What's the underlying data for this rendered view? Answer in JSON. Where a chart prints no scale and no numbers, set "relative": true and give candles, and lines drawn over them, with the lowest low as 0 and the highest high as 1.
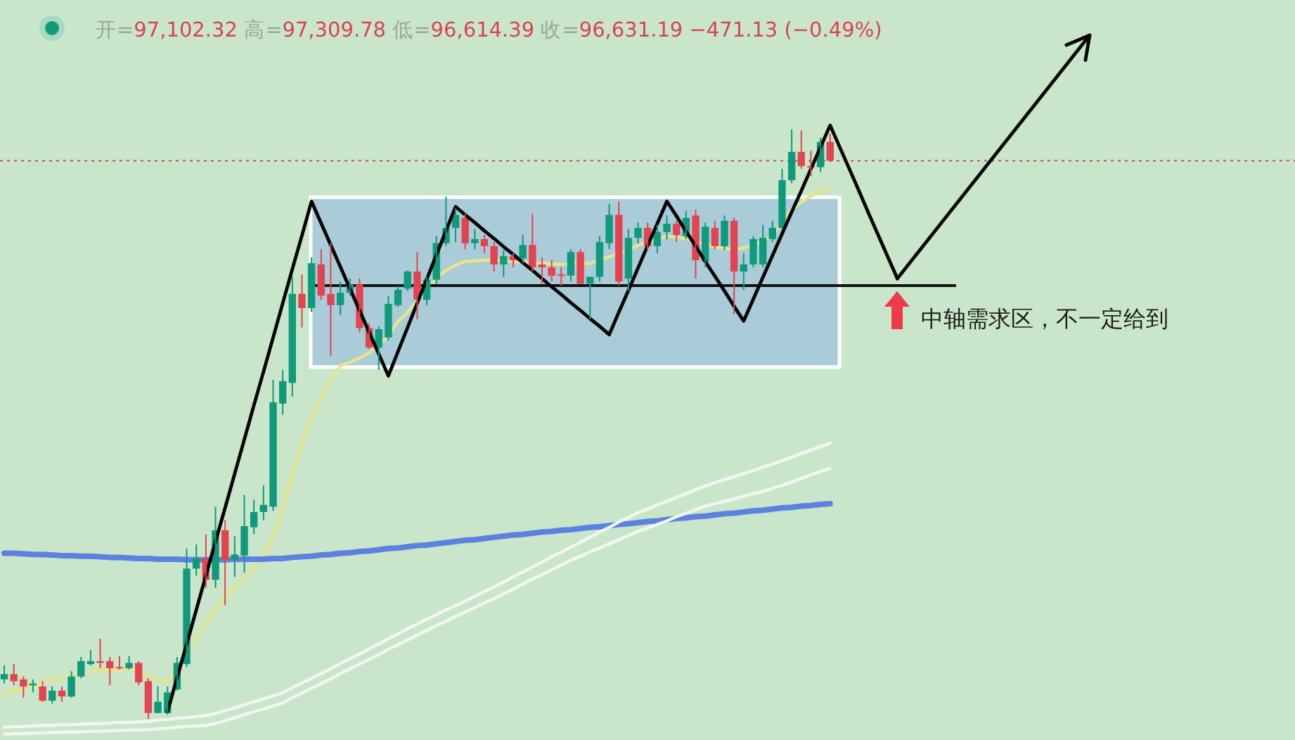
{
  "chart_data": {
    "type": "candlestick",
    "relative": true,
    "categories": [
      null,
      null,
      null,
      null,
      null,
      null,
      null,
      null,
      null,
      null,
      null,
      null,
      null,
      null,
      null,
      null,
      null,
      null,
      null,
      null,
      null,
      null,
      null,
      null,
      null,
      null,
      null,
      null,
      null,
      null,
      null,
      null,
      null,
      null,
      null,
      null,
      null,
      null,
      null,
      null,
      null,
      null,
      null,
      null,
      null,
      null,
      null,
      null,
      null,
      null,
      null,
      null,
      null,
      null,
      null,
      null,
      null,
      null,
      null,
      null,
      null,
      null,
      null,
      null,
      null,
      null,
      null,
      null,
      null,
      null,
      null,
      null,
      null,
      null,
      null,
      null,
      null,
      null,
      null,
      null,
      null,
      null,
      null,
      null,
      null,
      null,
      null,
      null,
      null,
      null,
      null,
      null,
      null,
      null
    ],
    "ohlc": [
      [
        0.067,
        0.091,
        0.06,
        0.076
      ],
      [
        0.076,
        0.093,
        0.057,
        0.064
      ],
      [
        0.067,
        0.072,
        0.036,
        0.055
      ],
      [
        0.057,
        0.067,
        0.045,
        0.06
      ],
      [
        0.055,
        0.064,
        0.029,
        0.031
      ],
      [
        0.031,
        0.055,
        0.026,
        0.048
      ],
      [
        0.048,
        0.055,
        0.029,
        0.038
      ],
      [
        0.038,
        0.081,
        0.036,
        0.072
      ],
      [
        0.072,
        0.105,
        0.069,
        0.098
      ],
      [
        0.093,
        0.117,
        0.091,
        0.098
      ],
      [
        0.098,
        0.136,
        0.086,
        0.095
      ],
      [
        0.098,
        0.105,
        0.057,
        0.086
      ],
      [
        0.088,
        0.107,
        0.084,
        0.086
      ],
      [
        0.086,
        0.107,
        0.084,
        0.095
      ],
      [
        0.095,
        0.098,
        0.057,
        0.062
      ],
      [
        0.064,
        0.069,
        0,
        0.01
      ],
      [
        0.01,
        0.055,
        0.01,
        0.029
      ],
      [
        0.01,
        0.055,
        0.007,
        0.045
      ],
      [
        0.05,
        0.105,
        0.048,
        0.095
      ],
      [
        0.093,
        0.289,
        0.088,
        0.255
      ],
      [
        0.255,
        0.296,
        0.243,
        0.272
      ],
      [
        0.272,
        0.313,
        0.222,
        0.236
      ],
      [
        0.236,
        0.36,
        0.222,
        0.32
      ],
      [
        0.32,
        0.337,
        0.193,
        0.27
      ],
      [
        0.27,
        0.31,
        0.241,
        0.279
      ],
      [
        0.277,
        0.38,
        0.248,
        0.327
      ],
      [
        0.325,
        0.372,
        0.313,
        0.351
      ],
      [
        0.351,
        0.396,
        0.337,
        0.363
      ],
      [
        0.36,
        0.575,
        0.353,
        0.537
      ],
      [
        0.535,
        0.592,
        0.516,
        0.573
      ],
      [
        0.57,
        0.75,
        0.547,
        0.721
      ],
      [
        0.721,
        0.754,
        0.664,
        0.697
      ],
      [
        0.697,
        0.783,
        0.69,
        0.773
      ],
      [
        0.771,
        0.797,
        0.711,
        0.718
      ],
      [
        0.721,
        0.807,
        0.616,
        0.702
      ],
      [
        0.702,
        0.742,
        0.685,
        0.723
      ],
      [
        0.723,
        0.747,
        0.718,
        0.737
      ],
      [
        0.737,
        0.747,
        0.656,
        0.663
      ],
      [
        0.663,
        0.671,
        0.628,
        0.63
      ],
      [
        0.63,
        0.666,
        0.592,
        0.661
      ],
      [
        0.647,
        0.718,
        0.642,
        0.704
      ],
      [
        0.702,
        0.735,
        0.699,
        0.728
      ],
      [
        0.73,
        0.761,
        0.726,
        0.759
      ],
      [
        0.759,
        0.792,
        0.678,
        0.711
      ],
      [
        0.711,
        0.75,
        0.702,
        0.745
      ],
      [
        0.745,
        0.819,
        0.738,
        0.807
      ],
      [
        0.807,
        0.886,
        0.802,
        0.833
      ],
      [
        0.833,
        0.866,
        0.809,
        0.855
      ],
      [
        0.85,
        0.857,
        0.797,
        0.807
      ],
      [
        0.807,
        0.831,
        0.797,
        0.814
      ],
      [
        0.814,
        0.821,
        0.79,
        0.802
      ],
      [
        0.802,
        0.809,
        0.759,
        0.771
      ],
      [
        0.771,
        0.795,
        0.75,
        0.785
      ],
      [
        0.785,
        0.79,
        0.766,
        0.778
      ],
      [
        0.781,
        0.821,
        0.773,
        0.804
      ],
      [
        0.804,
        0.857,
        0.759,
        0.766
      ],
      [
        0.771,
        0.783,
        0.738,
        0.766
      ],
      [
        0.766,
        0.778,
        0.742,
        0.752
      ],
      [
        0.754,
        0.766,
        0.735,
        0.752
      ],
      [
        0.752,
        0.797,
        0.742,
        0.792
      ],
      [
        0.792,
        0.797,
        0.738,
        0.738
      ],
      [
        0.738,
        0.75,
        0.678,
        0.75
      ],
      [
        0.75,
        0.819,
        0.742,
        0.809
      ],
      [
        0.807,
        0.874,
        0.797,
        0.855
      ],
      [
        0.855,
        0.878,
        0.735,
        0.742
      ],
      [
        0.747,
        0.831,
        0.726,
        0.816
      ],
      [
        0.816,
        0.842,
        0.807,
        0.833
      ],
      [
        0.833,
        0.842,
        0.795,
        0.802
      ],
      [
        0.802,
        0.838,
        0.79,
        0.826
      ],
      [
        0.826,
        0.854,
        0.814,
        0.84
      ],
      [
        0.84,
        0.845,
        0.809,
        0.821
      ],
      [
        0.819,
        0.862,
        0.814,
        0.85
      ],
      [
        0.854,
        0.864,
        0.747,
        0.778
      ],
      [
        0.776,
        0.842,
        0.766,
        0.835
      ],
      [
        0.833,
        0.845,
        0.797,
        0.802
      ],
      [
        0.802,
        0.854,
        0.795,
        0.845
      ],
      [
        0.845,
        0.85,
        0.687,
        0.759
      ],
      [
        0.759,
        0.79,
        0.728,
        0.771
      ],
      [
        0.771,
        0.819,
        0.766,
        0.814
      ],
      [
        0.771,
        0.838,
        0.766,
        0.816
      ],
      [
        0.814,
        0.845,
        0.809,
        0.833
      ],
      [
        0.833,
        0.933,
        0.831,
        0.914
      ],
      [
        0.914,
        1,
        0.909,
        0.962
      ],
      [
        0.962,
        0.998,
        0.933,
        0.938
      ],
      [
        0.938,
        0.964,
        0.921,
        0.936
      ],
      [
        0.936,
        0.986,
        0.928,
        0.979
      ],
      [
        0.979,
        0.993,
        0.945,
        0.947
      ],
      null,
      null,
      null,
      null,
      null,
      null,
      null
    ],
    "series": [
      {
        "type": "line",
        "color": "#000000",
        "values": [
          null,
          null,
          null,
          null,
          null,
          null,
          null,
          null,
          null,
          null,
          null,
          null,
          null,
          null,
          null,
          null,
          null,
          0.012,
          0.07,
          0.127,
          0.185,
          0.243,
          0.301,
          0.358,
          0.416,
          0.474,
          0.532,
          0.589,
          0.647,
          0.705,
          0.763,
          0.82,
          0.878,
          0.841,
          0.804,
          0.767,
          0.73,
          0.693,
          0.656,
          0.619,
          0.582,
          0.623,
          0.664,
          0.705,
          0.746,
          0.787,
          0.828,
          0.869,
          0.855,
          0.842,
          0.828,
          0.815,
          0.801,
          0.788,
          0.774,
          0.761,
          0.747,
          0.733,
          0.72,
          0.706,
          0.693,
          0.679,
          0.666,
          0.652,
          0.69,
          0.727,
          0.765,
          0.803,
          0.84,
          0.878,
          0.853,
          0.827,
          0.802,
          0.776,
          0.751,
          0.726,
          0.7,
          0.675,
          0.712,
          0.749,
          0.786,
          0.823,
          0.86,
          0.896,
          0.933,
          0.97,
          1.007,
          0.97,
          0.933,
          0.896,
          0.858,
          0.821,
          0.784,
          0.747
        ]
      },
      {
        "type": "line",
        "color": "#e6e48e",
        "values": [
          0.043,
          0.048,
          0.053,
          0.057,
          0.062,
          0.066,
          0.07,
          0.074,
          0.078,
          0.08,
          0.082,
          0.083,
          0.085,
          0.085,
          0.079,
          0.073,
          0.067,
          0.063,
          0.084,
          0.11,
          0.14,
          0.163,
          0.187,
          0.205,
          0.222,
          0.238,
          0.254,
          0.276,
          0.309,
          0.359,
          0.414,
          0.466,
          0.511,
          0.543,
          0.573,
          0.599,
          0.605,
          0.612,
          0.621,
          0.634,
          0.65,
          0.674,
          0.69,
          0.709,
          0.728,
          0.748,
          0.761,
          0.77,
          0.776,
          0.777,
          0.778,
          0.778,
          0.778,
          0.777,
          0.775,
          0.773,
          0.773,
          0.772,
          0.771,
          0.772,
          0.773,
          0.773,
          0.779,
          0.784,
          0.79,
          0.797,
          0.803,
          0.81,
          0.814,
          0.819,
          0.817,
          0.815,
          0.811,
          0.805,
          0.801,
          0.798,
          0.796,
          0.799,
          0.803,
          0.811,
          0.819,
          0.842,
          0.864,
          0.877,
          0.887,
          0.894,
          0.9,
          null,
          null,
          null,
          null,
          null,
          null,
          null
        ]
      },
      {
        "type": "line",
        "color": "#5b82e0",
        "values": [
          0.281,
          0.281,
          0.28,
          0.279,
          0.279,
          0.278,
          0.277,
          0.277,
          0.276,
          0.276,
          0.275,
          0.274,
          0.274,
          0.273,
          0.272,
          0.272,
          0.271,
          0.271,
          0.271,
          0.27,
          0.27,
          0.27,
          0.27,
          0.27,
          0.271,
          0.271,
          0.271,
          0.271,
          0.272,
          0.272,
          0.274,
          0.275,
          0.276,
          0.278,
          0.279,
          0.281,
          0.282,
          0.284,
          0.285,
          0.287,
          0.289,
          0.29,
          0.292,
          0.294,
          0.295,
          0.297,
          0.299,
          0.301,
          0.303,
          0.304,
          0.306,
          0.308,
          0.31,
          0.312,
          0.313,
          0.315,
          0.317,
          0.318,
          0.32,
          0.321,
          0.323,
          0.325,
          0.326,
          0.328,
          0.33,
          0.331,
          0.333,
          0.335,
          0.336,
          0.338,
          0.34,
          0.341,
          0.343,
          0.344,
          0.346,
          0.348,
          0.349,
          0.351,
          0.353,
          0.354,
          0.356,
          0.358,
          0.359,
          0.361,
          0.362,
          0.364,
          0.365,
          null,
          null,
          null,
          null,
          null,
          null,
          null
        ]
      },
      {
        "type": "line",
        "color": "#f2f6f2",
        "values": [
          -0.014,
          -0.013,
          -0.013,
          -0.012,
          -0.011,
          -0.011,
          -0.01,
          -0.01,
          -0.009,
          -0.008,
          -0.008,
          -0.007,
          -0.006,
          -0.006,
          -0.005,
          -0.004,
          -0.002,
          -0.001,
          0.001,
          0.002,
          0.004,
          0.006,
          0.009,
          0.014,
          0.019,
          0.024,
          0.029,
          0.034,
          0.039,
          0.044,
          0.053,
          0.061,
          0.069,
          0.077,
          0.085,
          0.094,
          0.102,
          0.11,
          0.119,
          0.127,
          0.136,
          0.144,
          0.153,
          0.161,
          0.169,
          0.177,
          0.185,
          0.192,
          0.2,
          0.208,
          0.216,
          0.224,
          0.232,
          0.241,
          0.249,
          0.258,
          0.266,
          0.275,
          0.283,
          0.291,
          0.3,
          0.308,
          0.317,
          0.325,
          0.334,
          0.342,
          0.35,
          0.356,
          0.363,
          0.369,
          0.376,
          0.382,
          0.389,
          0.395,
          0.401,
          0.406,
          0.411,
          0.416,
          0.421,
          0.427,
          0.432,
          0.438,
          0.444,
          0.45,
          0.456,
          0.462,
          0.468,
          null,
          null,
          null,
          null,
          null,
          null,
          null
        ]
      },
      {
        "type": "line",
        "color": "#f2f6f2",
        "values": [
          -0.026,
          -0.025,
          -0.025,
          -0.024,
          -0.024,
          -0.023,
          -0.023,
          -0.022,
          -0.022,
          -0.021,
          -0.021,
          -0.02,
          -0.02,
          -0.019,
          -0.019,
          -0.018,
          -0.017,
          -0.016,
          -0.014,
          -0.013,
          -0.012,
          -0.011,
          -0.008,
          -0.003,
          0.002,
          0.007,
          0.012,
          0.017,
          0.022,
          0.027,
          0.036,
          0.044,
          0.052,
          0.06,
          0.068,
          0.077,
          0.085,
          0.093,
          0.101,
          0.109,
          0.118,
          0.126,
          0.134,
          0.142,
          0.15,
          0.158,
          0.166,
          0.174,
          0.181,
          0.189,
          0.197,
          0.204,
          0.212,
          0.22,
          0.229,
          0.237,
          0.245,
          0.253,
          0.261,
          0.269,
          0.276,
          0.283,
          0.29,
          0.297,
          0.304,
          0.311,
          0.318,
          0.324,
          0.33,
          0.336,
          0.343,
          0.349,
          0.355,
          0.361,
          0.365,
          0.369,
          0.373,
          0.378,
          0.382,
          0.386,
          0.391,
          0.396,
          0.402,
          0.408,
          0.414,
          0.42,
          0.425,
          null,
          null,
          null,
          null,
          null,
          null,
          null
        ]
      }
    ],
    "ref_lines": [
      {
        "axis": "y",
        "value": 0.947,
        "color": "#c0504d",
        "line_style": "dotted"
      },
      {
        "axis": "y",
        "value": 0.735,
        "color": "#111111",
        "line_style": "solid"
      }
    ],
    "bands": [
      {
        "axis": "y",
        "from": 0.597,
        "to": 0.885,
        "color": "#a9ccd8"
      }
    ],
    "annotations": [
      "开=97,102.32 高=97,309.78 低=96,614.39 收=96,631.19 −471.13 (−0.49%)",
      "中轴需求区，不一定给到"
    ]
  }
}
